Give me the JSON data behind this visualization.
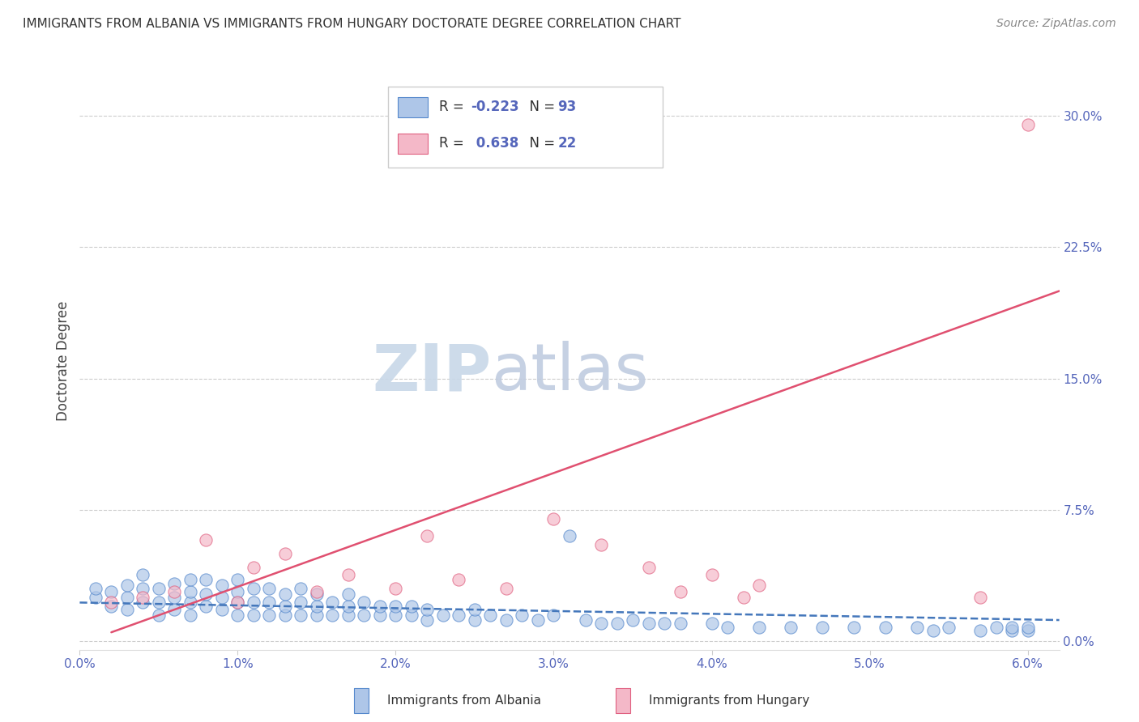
{
  "title": "IMMIGRANTS FROM ALBANIA VS IMMIGRANTS FROM HUNGARY DOCTORATE DEGREE CORRELATION CHART",
  "source": "Source: ZipAtlas.com",
  "ylabel_label": "Doctorate Degree",
  "xlim": [
    0.0,
    0.062
  ],
  "ylim": [
    -0.005,
    0.325
  ],
  "albania_R": -0.223,
  "albania_N": 93,
  "hungary_R": 0.638,
  "hungary_N": 22,
  "albania_color": "#aec6e8",
  "hungary_color": "#f4b8c8",
  "albania_edge_color": "#5588cc",
  "hungary_edge_color": "#e06080",
  "albania_line_color": "#4477bb",
  "hungary_line_color": "#e05070",
  "watermark_zip": "ZIP",
  "watermark_atlas": "atlas",
  "watermark_color_zip": "#c8d8e8",
  "watermark_color_atlas": "#c0cce0",
  "background_color": "#ffffff",
  "grid_color": "#cccccc",
  "tick_color": "#5566bb",
  "title_color": "#333333",
  "ylabel_color": "#444444",
  "albania_scatter_x": [
    0.001,
    0.001,
    0.002,
    0.002,
    0.003,
    0.003,
    0.003,
    0.004,
    0.004,
    0.004,
    0.005,
    0.005,
    0.005,
    0.006,
    0.006,
    0.006,
    0.007,
    0.007,
    0.007,
    0.007,
    0.008,
    0.008,
    0.008,
    0.009,
    0.009,
    0.009,
    0.01,
    0.01,
    0.01,
    0.01,
    0.011,
    0.011,
    0.011,
    0.012,
    0.012,
    0.012,
    0.013,
    0.013,
    0.013,
    0.014,
    0.014,
    0.014,
    0.015,
    0.015,
    0.015,
    0.016,
    0.016,
    0.017,
    0.017,
    0.017,
    0.018,
    0.018,
    0.019,
    0.019,
    0.02,
    0.02,
    0.021,
    0.021,
    0.022,
    0.022,
    0.023,
    0.024,
    0.025,
    0.025,
    0.026,
    0.027,
    0.028,
    0.029,
    0.03,
    0.031,
    0.032,
    0.033,
    0.034,
    0.035,
    0.036,
    0.037,
    0.038,
    0.04,
    0.041,
    0.043,
    0.045,
    0.047,
    0.049,
    0.051,
    0.053,
    0.054,
    0.055,
    0.057,
    0.058,
    0.059,
    0.059,
    0.06,
    0.06
  ],
  "albania_scatter_y": [
    0.025,
    0.03,
    0.02,
    0.028,
    0.018,
    0.025,
    0.032,
    0.022,
    0.03,
    0.038,
    0.015,
    0.022,
    0.03,
    0.018,
    0.025,
    0.033,
    0.015,
    0.022,
    0.028,
    0.035,
    0.02,
    0.027,
    0.035,
    0.018,
    0.025,
    0.032,
    0.015,
    0.022,
    0.028,
    0.035,
    0.015,
    0.022,
    0.03,
    0.015,
    0.022,
    0.03,
    0.015,
    0.02,
    0.027,
    0.015,
    0.022,
    0.03,
    0.015,
    0.02,
    0.027,
    0.015,
    0.022,
    0.015,
    0.02,
    0.027,
    0.015,
    0.022,
    0.015,
    0.02,
    0.015,
    0.02,
    0.015,
    0.02,
    0.012,
    0.018,
    0.015,
    0.015,
    0.012,
    0.018,
    0.015,
    0.012,
    0.015,
    0.012,
    0.015,
    0.06,
    0.012,
    0.01,
    0.01,
    0.012,
    0.01,
    0.01,
    0.01,
    0.01,
    0.008,
    0.008,
    0.008,
    0.008,
    0.008,
    0.008,
    0.008,
    0.006,
    0.008,
    0.006,
    0.008,
    0.006,
    0.008,
    0.006,
    0.008
  ],
  "hungary_scatter_x": [
    0.002,
    0.004,
    0.006,
    0.008,
    0.01,
    0.011,
    0.013,
    0.015,
    0.017,
    0.02,
    0.022,
    0.024,
    0.027,
    0.03,
    0.033,
    0.036,
    0.038,
    0.04,
    0.042,
    0.043,
    0.057,
    0.06
  ],
  "hungary_scatter_y": [
    0.022,
    0.025,
    0.028,
    0.058,
    0.022,
    0.042,
    0.05,
    0.028,
    0.038,
    0.03,
    0.06,
    0.035,
    0.03,
    0.07,
    0.055,
    0.042,
    0.028,
    0.038,
    0.025,
    0.032,
    0.025,
    0.295
  ],
  "albania_line_x": [
    0.0,
    0.062
  ],
  "albania_line_y": [
    0.022,
    0.012
  ],
  "hungary_line_x": [
    0.002,
    0.062
  ],
  "hungary_line_y": [
    0.005,
    0.2
  ]
}
